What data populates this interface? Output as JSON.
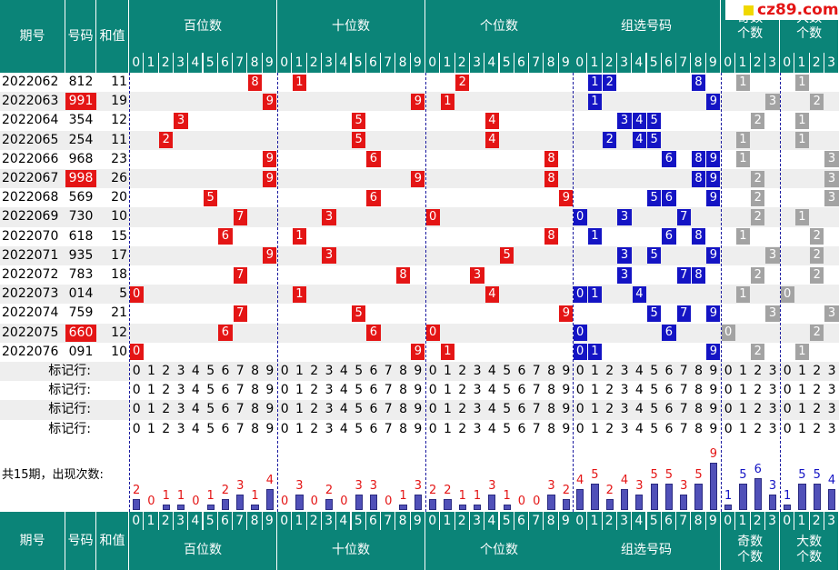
{
  "header": {
    "issue_label": "期号",
    "number_label": "号码",
    "sum_label": "和值",
    "sections": [
      "百位数",
      "十位数",
      "个位数",
      "组选号码",
      "奇数\n个数",
      "大数\n个数"
    ]
  },
  "logo_text": "cz89.com",
  "digits": [
    "0",
    "1",
    "2",
    "3",
    "4",
    "5",
    "6",
    "7",
    "8",
    "9"
  ],
  "count_digits": [
    "0",
    "1",
    "2",
    "3"
  ],
  "rows": [
    {
      "issue": "2022062",
      "num": "812",
      "sum": "11",
      "pair": false,
      "h": 8,
      "t": 1,
      "u": 2,
      "combo": [
        1,
        2,
        8
      ],
      "odd": 1,
      "big": 1
    },
    {
      "issue": "2022063",
      "num": "991",
      "sum": "19",
      "pair": true,
      "h": 9,
      "t": 9,
      "u": 1,
      "combo": [
        1,
        9
      ],
      "odd": 3,
      "big": 2
    },
    {
      "issue": "2022064",
      "num": "354",
      "sum": "12",
      "pair": false,
      "h": 3,
      "t": 5,
      "u": 4,
      "combo": [
        3,
        4,
        5
      ],
      "odd": 2,
      "big": 1
    },
    {
      "issue": "2022065",
      "num": "254",
      "sum": "11",
      "pair": false,
      "h": 2,
      "t": 5,
      "u": 4,
      "combo": [
        2,
        4,
        5
      ],
      "odd": 1,
      "big": 1
    },
    {
      "issue": "2022066",
      "num": "968",
      "sum": "23",
      "pair": false,
      "h": 9,
      "t": 6,
      "u": 8,
      "combo": [
        6,
        8,
        9
      ],
      "odd": 1,
      "big": 3
    },
    {
      "issue": "2022067",
      "num": "998",
      "sum": "26",
      "pair": true,
      "h": 9,
      "t": 9,
      "u": 8,
      "combo": [
        8,
        9
      ],
      "odd": 2,
      "big": 3
    },
    {
      "issue": "2022068",
      "num": "569",
      "sum": "20",
      "pair": false,
      "h": 5,
      "t": 6,
      "u": 9,
      "combo": [
        5,
        6,
        9
      ],
      "odd": 2,
      "big": 3
    },
    {
      "issue": "2022069",
      "num": "730",
      "sum": "10",
      "pair": false,
      "h": 7,
      "t": 3,
      "u": 0,
      "combo": [
        0,
        3,
        7
      ],
      "odd": 2,
      "big": 1
    },
    {
      "issue": "2022070",
      "num": "618",
      "sum": "15",
      "pair": false,
      "h": 6,
      "t": 1,
      "u": 8,
      "combo": [
        1,
        6,
        8
      ],
      "odd": 1,
      "big": 2
    },
    {
      "issue": "2022071",
      "num": "935",
      "sum": "17",
      "pair": false,
      "h": 9,
      "t": 3,
      "u": 5,
      "combo": [
        3,
        5,
        9
      ],
      "odd": 3,
      "big": 2
    },
    {
      "issue": "2022072",
      "num": "783",
      "sum": "18",
      "pair": false,
      "h": 7,
      "t": 8,
      "u": 3,
      "combo": [
        3,
        7,
        8
      ],
      "odd": 2,
      "big": 2
    },
    {
      "issue": "2022073",
      "num": "014",
      "sum": "5",
      "pair": false,
      "h": 0,
      "t": 1,
      "u": 4,
      "combo": [
        0,
        1,
        4
      ],
      "odd": 1,
      "big": 0
    },
    {
      "issue": "2022074",
      "num": "759",
      "sum": "21",
      "pair": false,
      "h": 7,
      "t": 5,
      "u": 9,
      "combo": [
        5,
        7,
        9
      ],
      "odd": 3,
      "big": 3
    },
    {
      "issue": "2022075",
      "num": "660",
      "sum": "12",
      "pair": true,
      "h": 6,
      "t": 6,
      "u": 0,
      "combo": [
        0,
        6
      ],
      "odd": 0,
      "big": 2
    },
    {
      "issue": "2022076",
      "num": "091",
      "sum": "10",
      "pair": false,
      "h": 0,
      "t": 9,
      "u": 1,
      "combo": [
        0,
        1,
        9
      ],
      "odd": 2,
      "big": 1
    }
  ],
  "marker_row_label": "标记行:",
  "stats_label": "共15期，出现次数:",
  "chart_data": {
    "type": "bar",
    "title": "",
    "groups": [
      {
        "name": "百位数",
        "categories": [
          "0",
          "1",
          "2",
          "3",
          "4",
          "5",
          "6",
          "7",
          "8",
          "9"
        ],
        "values": [
          2,
          0,
          1,
          1,
          0,
          1,
          2,
          3,
          1,
          4
        ]
      },
      {
        "name": "十位数",
        "categories": [
          "0",
          "1",
          "2",
          "3",
          "4",
          "5",
          "6",
          "7",
          "8",
          "9"
        ],
        "values": [
          0,
          3,
          0,
          2,
          0,
          3,
          3,
          0,
          1,
          3
        ]
      },
      {
        "name": "个位数",
        "categories": [
          "0",
          "1",
          "2",
          "3",
          "4",
          "5",
          "6",
          "7",
          "8",
          "9"
        ],
        "values": [
          2,
          2,
          1,
          1,
          3,
          1,
          0,
          0,
          3,
          2
        ]
      },
      {
        "name": "组选号码",
        "categories": [
          "0",
          "1",
          "2",
          "3",
          "4",
          "5",
          "6",
          "7",
          "8",
          "9"
        ],
        "values": [
          4,
          5,
          2,
          4,
          3,
          5,
          5,
          3,
          5,
          9
        ]
      },
      {
        "name": "奇数个数",
        "categories": [
          "0",
          "1",
          "2",
          "3"
        ],
        "values": [
          1,
          5,
          6,
          3
        ]
      },
      {
        "name": "大数个数",
        "categories": [
          "0",
          "1",
          "2",
          "3"
        ],
        "values": [
          1,
          5,
          5,
          4
        ]
      }
    ]
  },
  "colors": {
    "header": "#0b8478",
    "red": "#e41515",
    "blue": "#1414c4",
    "gray": "#a3a3a3",
    "bar": "#5050b8",
    "bar_value_red": "#e41515",
    "bar_value_blue": "#1414c4"
  }
}
